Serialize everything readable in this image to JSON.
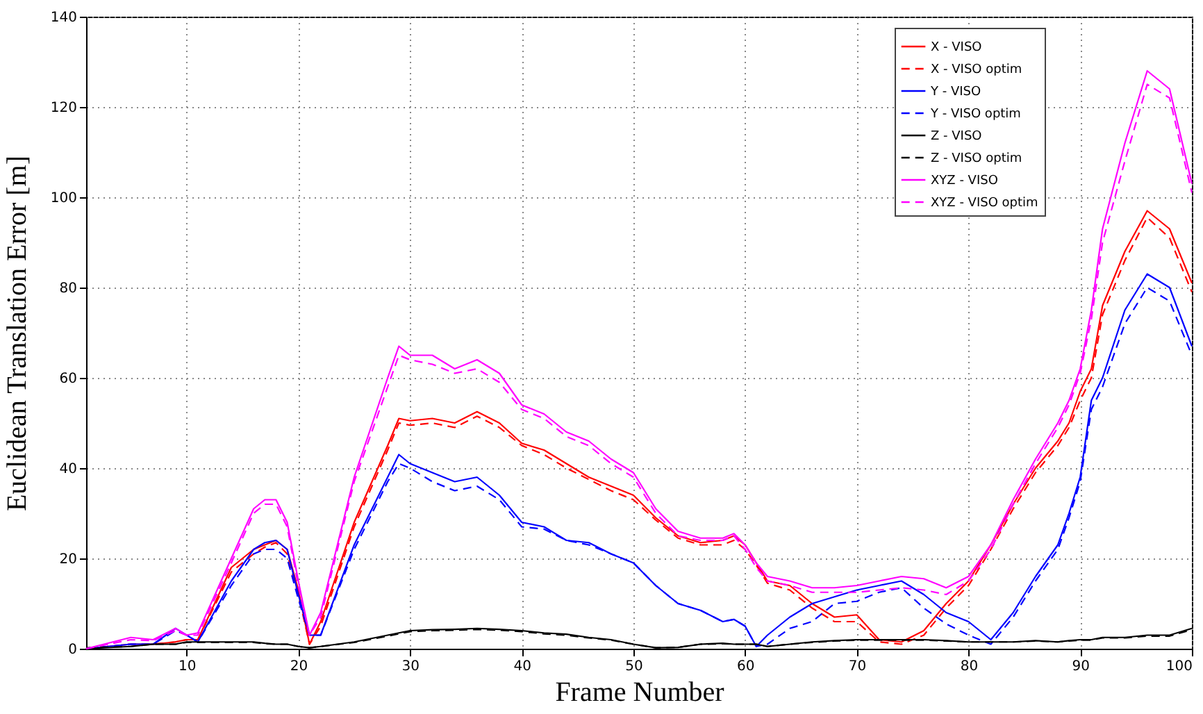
{
  "chart_data": {
    "type": "line",
    "xlabel": "Frame Number",
    "ylabel": "Euclidean Translation Error [m]",
    "x": [
      1,
      5,
      7,
      9,
      10,
      11,
      14,
      16,
      17,
      18,
      19,
      20,
      21,
      22,
      25,
      28,
      29,
      30,
      32,
      34,
      36,
      38,
      40,
      42,
      44,
      46,
      48,
      50,
      52,
      54,
      56,
      58,
      59,
      60,
      61,
      62,
      64,
      66,
      68,
      70,
      72,
      74,
      76,
      78,
      80,
      82,
      84,
      86,
      88,
      89,
      90,
      91,
      92,
      94,
      96,
      98,
      100
    ],
    "xlim": [
      1,
      100
    ],
    "xticks": [
      10,
      20,
      30,
      40,
      50,
      60,
      70,
      80,
      90,
      100
    ],
    "ylim": [
      0,
      140
    ],
    "yticks": [
      0,
      20,
      40,
      60,
      80,
      100,
      120,
      140
    ],
    "grid": true,
    "legend": "top right",
    "series": [
      {
        "name": "X - VISO",
        "color": "#ff0000",
        "line_style": "solid",
        "values": [
          0,
          1,
          1,
          1.5,
          2,
          2,
          18,
          22,
          23,
          24,
          22,
          13,
          1,
          6,
          28,
          45,
          51,
          50.5,
          51,
          50,
          52.5,
          50,
          45.5,
          44,
          41,
          38,
          36,
          34,
          29,
          25,
          23.5,
          24,
          25,
          23,
          19,
          15,
          14,
          10,
          7,
          7.5,
          2,
          1.5,
          4,
          10,
          15,
          23,
          32,
          40,
          46,
          50,
          57,
          62,
          76,
          88,
          97,
          93,
          81
        ]
      },
      {
        "name": "X - VISO optim",
        "color": "#ff0000",
        "line_style": "dashed",
        "values": [
          0,
          1,
          1,
          1.5,
          2,
          2,
          17,
          21,
          22.5,
          23.5,
          21,
          12,
          1,
          5,
          27,
          44,
          50,
          49.5,
          50,
          49,
          51.5,
          49,
          45,
          43,
          40,
          37.5,
          35,
          33,
          28.5,
          24.5,
          23,
          23,
          24,
          22,
          18.5,
          14.5,
          13,
          9,
          6,
          6,
          1.5,
          1,
          3,
          9,
          14,
          22,
          31,
          39,
          45,
          49,
          55,
          60,
          74,
          86,
          95.5,
          91,
          79
        ]
      },
      {
        "name": "Y - VISO",
        "color": "#0000ff",
        "line_style": "solid",
        "values": [
          0,
          1,
          1,
          4.5,
          3,
          1.5,
          15,
          22,
          23.5,
          24,
          22,
          12,
          3,
          3,
          23,
          38,
          43,
          41,
          39,
          37,
          38,
          34,
          28,
          27,
          24,
          23.5,
          21,
          19,
          14,
          10,
          8.5,
          6,
          6.5,
          5,
          0.5,
          3,
          7,
          10,
          11.5,
          13,
          14,
          15,
          12,
          8,
          6,
          2,
          8,
          16,
          23,
          30,
          38,
          55,
          60,
          75,
          83,
          80,
          67
        ]
      },
      {
        "name": "Y - VISO optim",
        "color": "#0000ff",
        "line_style": "dashed",
        "values": [
          0,
          1,
          1,
          4,
          3,
          1.5,
          14,
          21,
          22,
          22,
          20,
          11,
          3,
          3,
          22,
          37,
          41,
          40,
          37,
          35,
          36,
          33,
          27,
          26.5,
          24,
          23,
          21,
          19,
          14,
          10,
          8.5,
          6,
          6.5,
          5,
          0.5,
          1,
          4.5,
          6,
          10,
          10.5,
          12.5,
          13.5,
          9,
          5.5,
          3,
          1,
          7,
          15,
          22,
          29,
          37,
          53,
          58,
          72,
          80,
          77,
          65
        ]
      },
      {
        "name": "Z - VISO",
        "color": "#000000",
        "line_style": "solid",
        "values": [
          0,
          0.5,
          1,
          1,
          1.5,
          1.5,
          1.5,
          1.5,
          1.2,
          1,
          1,
          0.5,
          0.2,
          0.5,
          1.5,
          3,
          3.5,
          4,
          4.2,
          4.3,
          4.5,
          4.3,
          4,
          3.5,
          3.2,
          2.5,
          2,
          1,
          0.2,
          0.3,
          1,
          1.2,
          1,
          1,
          1,
          0.5,
          1,
          1.5,
          1.8,
          2,
          2,
          2,
          2,
          1.8,
          1.5,
          1.5,
          1.5,
          1.8,
          1.5,
          1.8,
          2,
          2,
          2.5,
          2.5,
          3,
          3,
          4.5
        ]
      },
      {
        "name": "Z - VISO optim",
        "color": "#000000",
        "line_style": "dashed",
        "values": [
          0.2,
          0.5,
          1,
          1,
          1.4,
          1.4,
          1.4,
          1.4,
          1.1,
          1,
          1,
          0.5,
          0.2,
          0.5,
          1.4,
          2.8,
          3.3,
          3.8,
          4,
          4.1,
          4.3,
          4.1,
          3.8,
          3.3,
          3,
          2.4,
          1.9,
          1,
          0.2,
          0.3,
          1,
          1.1,
          1,
          1,
          1,
          0.5,
          1,
          1.4,
          1.7,
          1.9,
          1.9,
          1.9,
          1.9,
          1.7,
          1.5,
          1.5,
          1.5,
          1.7,
          1.5,
          1.7,
          1.9,
          1.9,
          2.4,
          2.4,
          2.8,
          2.8,
          4.2
        ]
      },
      {
        "name": "XYZ - VISO",
        "color": "#ff00ff",
        "line_style": "solid",
        "values": [
          0,
          2.5,
          2,
          4.5,
          3,
          3.5,
          20,
          31,
          33,
          33,
          28,
          15,
          3,
          8,
          38,
          60,
          67,
          65,
          65,
          62,
          64,
          61,
          54,
          52,
          48,
          46,
          42,
          39,
          31,
          26,
          24.5,
          24.5,
          25.5,
          23,
          19,
          16,
          15,
          13.5,
          13.5,
          14,
          15,
          16,
          15.5,
          13.5,
          16,
          23,
          33,
          42,
          50,
          55,
          62,
          75,
          93,
          112,
          128,
          124,
          103
        ]
      },
      {
        "name": "XYZ - VISO optim",
        "color": "#ff00ff",
        "line_style": "dashed",
        "values": [
          0,
          2,
          1.8,
          4,
          3,
          3,
          19,
          30,
          32,
          32,
          27,
          14,
          3,
          7,
          37,
          58,
          65,
          64,
          63,
          61,
          62,
          59,
          53,
          51,
          47,
          45,
          41,
          38,
          30,
          25,
          24,
          24,
          25,
          22,
          18,
          15,
          14,
          12.5,
          12.5,
          12.5,
          13,
          13.5,
          13,
          12,
          15,
          22,
          32,
          41,
          49,
          54,
          61,
          73,
          90,
          108,
          125,
          122,
          101
        ]
      }
    ]
  }
}
